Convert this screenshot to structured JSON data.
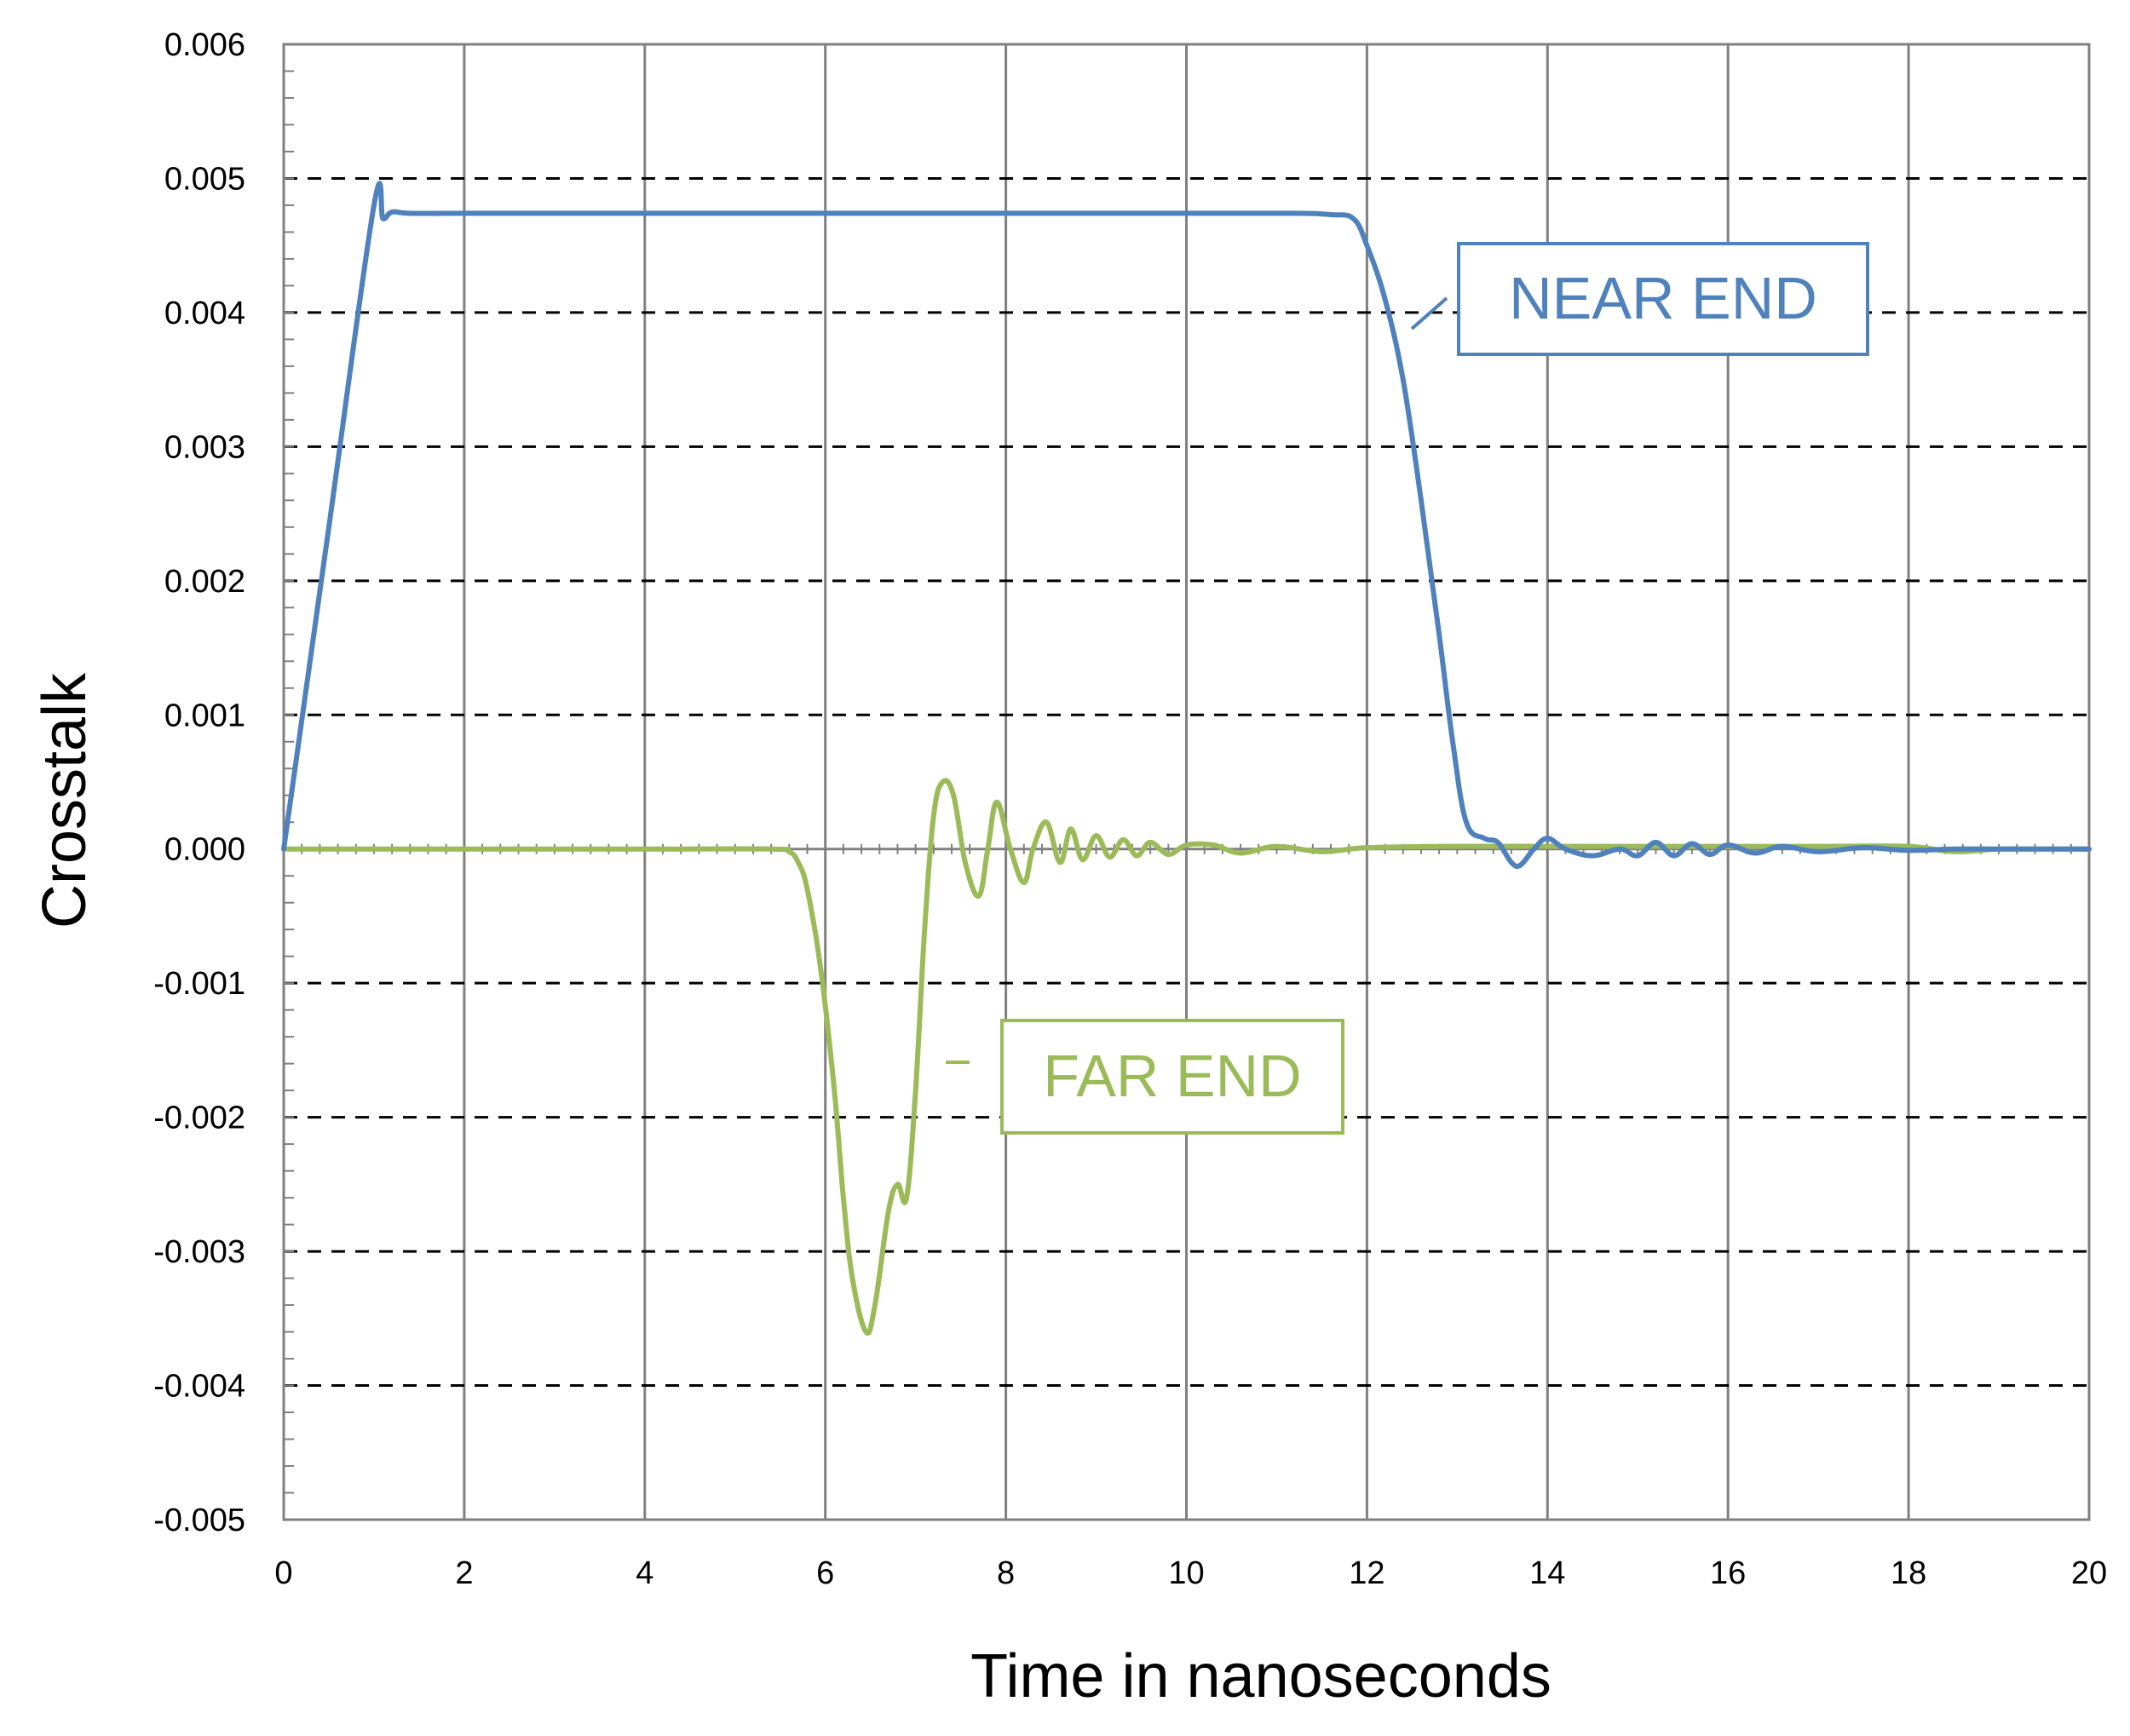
{
  "chart_data": {
    "type": "line",
    "title": "",
    "xlabel": "Time in nanoseconds",
    "ylabel": "Crosstalk",
    "xlim": [
      0,
      20
    ],
    "ylim": [
      -0.005,
      0.006
    ],
    "x_ticks": [
      0,
      2,
      4,
      6,
      8,
      10,
      12,
      14,
      16,
      18,
      20
    ],
    "x_tick_labels": [
      "0",
      "2",
      "4",
      "6",
      "8",
      "10",
      "12",
      "14",
      "16",
      "18",
      "20"
    ],
    "y_ticks": [
      -0.005,
      -0.004,
      -0.003,
      -0.002,
      -0.001,
      0,
      0.001,
      0.002,
      0.003,
      0.004,
      0.005,
      0.006
    ],
    "y_tick_labels": [
      "-0.005",
      "-0.004",
      "-0.003",
      "-0.002",
      "-0.001",
      "0.000",
      "0.001",
      "0.002",
      "0.003",
      "0.004",
      "0.005",
      "0.006"
    ],
    "vertical_grid": "solid",
    "horizontal_grid": "dashed",
    "series": [
      {
        "name": "NEAR END",
        "color": "#4f81bd",
        "x": [
          0,
          0.5,
          1.0,
          1.1,
          1.2,
          1.4,
          2,
          4,
          6,
          8,
          10,
          11.2,
          11.6,
          11.85,
          12.0,
          12.2,
          12.4,
          12.6,
          12.8,
          12.95,
          13.1,
          13.3,
          13.45,
          13.6,
          13.7,
          13.85,
          14.0,
          14.2,
          14.5,
          14.8,
          15.0,
          15.2,
          15.4,
          15.6,
          15.8,
          16.0,
          16.3,
          16.6,
          17.0,
          17.5,
          18.0,
          18.5,
          19.0,
          19.5,
          20.0
        ],
        "y": [
          0,
          0.0024,
          0.0048,
          0.0047,
          0.00475,
          0.00474,
          0.00474,
          0.00474,
          0.00474,
          0.00474,
          0.00474,
          0.00474,
          0.00473,
          0.0047,
          0.0045,
          0.0041,
          0.0035,
          0.0026,
          0.0016,
          0.0008,
          0.0002,
          8e-05,
          5e-05,
          -0.0001,
          -0.00012,
          0.0,
          8e-05,
          0.0,
          -5e-05,
          0.0,
          -5e-05,
          5e-05,
          -5e-05,
          4e-05,
          -4e-05,
          3e-05,
          -3e-05,
          2e-05,
          -2e-05,
          1e-05,
          -1e-05,
          0.0,
          0.0,
          0.0,
          0.0
        ]
      },
      {
        "name": "FAR END",
        "color": "#9bbb59",
        "x": [
          0,
          2,
          4,
          5.4,
          5.6,
          5.7,
          5.8,
          5.95,
          6.1,
          6.2,
          6.3,
          6.45,
          6.55,
          6.7,
          6.8,
          6.9,
          7.0,
          7.1,
          7.2,
          7.3,
          7.42,
          7.55,
          7.7,
          7.8,
          7.9,
          8.05,
          8.2,
          8.3,
          8.45,
          8.6,
          8.72,
          8.85,
          9.0,
          9.15,
          9.3,
          9.45,
          9.6,
          9.8,
          10.0,
          10.3,
          10.6,
          11.0,
          11.5,
          12.0,
          13.0,
          14.0,
          15.0,
          16.0,
          17.0,
          18.0,
          18.5,
          19.0,
          19.5,
          20.0
        ],
        "y": [
          0,
          0,
          0,
          0,
          -2e-05,
          -0.0001,
          -0.0003,
          -0.0009,
          -0.0018,
          -0.0026,
          -0.0032,
          -0.0036,
          -0.0034,
          -0.0027,
          -0.0025,
          -0.0026,
          -0.0018,
          -0.0006,
          0.00025,
          0.0005,
          0.0004,
          -0.0001,
          -0.00035,
          0.0,
          0.00035,
          0.0,
          -0.00025,
          0.0,
          0.0002,
          -0.0001,
          0.00015,
          -8e-05,
          0.0001,
          -6e-05,
          7e-05,
          -5e-05,
          5e-05,
          -4e-05,
          3e-05,
          3e-05,
          -3e-05,
          2e-05,
          -2e-05,
          1e-05,
          2e-05,
          2e-05,
          2e-05,
          2e-05,
          2e-05,
          2e-05,
          -2e-05,
          0.0,
          0.0,
          0.0
        ]
      }
    ],
    "annotations": [
      {
        "text": "NEAR END",
        "series": "NEAR END"
      },
      {
        "text": "FAR END",
        "series": "FAR END"
      }
    ]
  }
}
